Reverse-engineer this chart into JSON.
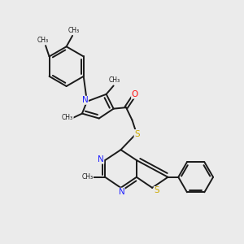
{
  "background_color": "#ebebeb",
  "bond_color": "#1a1a1a",
  "bond_width": 1.4,
  "N_color": "#2020ff",
  "O_color": "#ff1010",
  "S_color": "#ccaa00",
  "figsize": [
    3.0,
    3.0
  ],
  "dpi": 100,
  "xlim": [
    0,
    10
  ],
  "ylim": [
    0,
    10
  ]
}
